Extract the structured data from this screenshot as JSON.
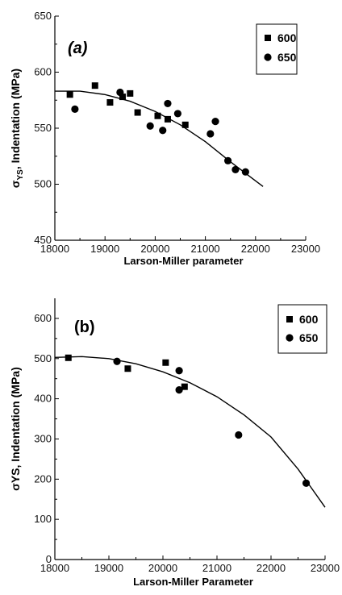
{
  "chart_data": [
    {
      "type": "scatter",
      "panel_label": "(a)",
      "xlabel": "Larson-Miller parameter",
      "ylabel_prefix": "σ",
      "ylabel_sub": "YS",
      "ylabel_rest": ", Indentation (MPa)",
      "xlim": [
        18000,
        23000
      ],
      "ylim": [
        450,
        650
      ],
      "xticks": [
        "18000",
        "19000",
        "20000",
        "21000",
        "22000",
        "23000"
      ],
      "yticks": [
        "450",
        "500",
        "550",
        "600",
        "650"
      ],
      "legend_position": "top-right",
      "series": [
        {
          "name": "600",
          "marker": "square",
          "x": [
            18300,
            18800,
            19100,
            19350,
            19500,
            19650,
            20050,
            20250,
            20600
          ],
          "y": [
            580,
            588,
            573,
            578,
            581,
            564,
            561,
            558,
            553
          ]
        },
        {
          "name": "650",
          "marker": "circle",
          "x": [
            18400,
            19300,
            19900,
            20150,
            20250,
            20450,
            21100,
            21200,
            21450,
            21600,
            21800
          ],
          "y": [
            567,
            582,
            552,
            548,
            572,
            563,
            545,
            556,
            521,
            513,
            511
          ]
        }
      ],
      "fit_curve": {
        "x": [
          18000,
          18500,
          19000,
          19500,
          20000,
          20500,
          21000,
          21500,
          22000,
          22150
        ],
        "y": [
          583,
          583,
          580,
          574,
          565,
          553,
          538,
          520,
          503,
          498
        ]
      }
    },
    {
      "type": "scatter",
      "panel_label": "(b)",
      "xlabel": "Larson-Miller Parameter",
      "ylabel_prefix": "σ",
      "ylabel_sub": "",
      "ylabel_rest": "YS, Indentation (MPa)",
      "xlim": [
        18000,
        23000
      ],
      "ylim": [
        0,
        650
      ],
      "xticks": [
        "18000",
        "19000",
        "20000",
        "21000",
        "22000",
        "23000"
      ],
      "yticks": [
        "0",
        "100",
        "200",
        "300",
        "400",
        "500",
        "600"
      ],
      "legend_position": "top-right",
      "series": [
        {
          "name": "600",
          "marker": "square",
          "x": [
            18250,
            19350,
            20050,
            20400
          ],
          "y": [
            502,
            475,
            490,
            430
          ]
        },
        {
          "name": "650",
          "marker": "circle",
          "x": [
            19150,
            20300,
            20300,
            21400,
            22650
          ],
          "y": [
            493,
            470,
            422,
            310,
            190
          ]
        }
      ],
      "fit_curve": {
        "x": [
          18000,
          18500,
          19000,
          19500,
          20000,
          20500,
          21000,
          21500,
          22000,
          22500,
          23000
        ],
        "y": [
          503,
          505,
          500,
          487,
          467,
          440,
          405,
          360,
          305,
          225,
          130
        ]
      }
    }
  ]
}
